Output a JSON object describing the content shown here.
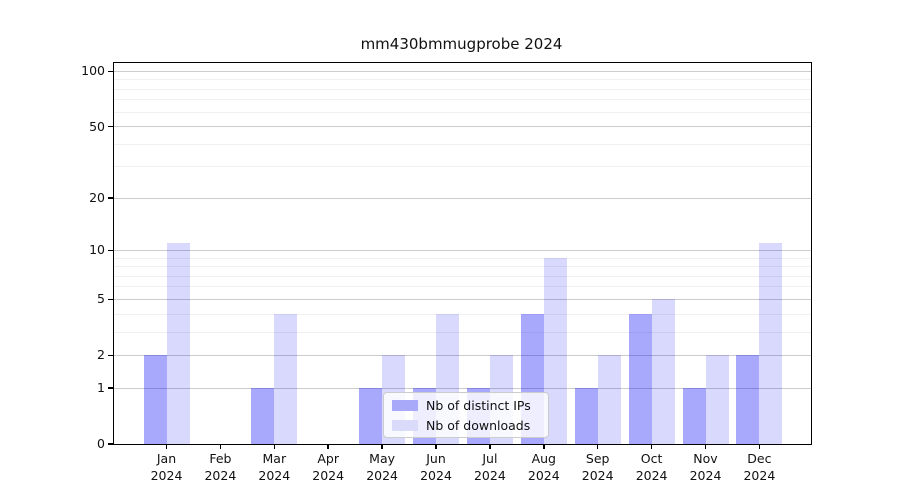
{
  "figure": {
    "background": "#ffffff"
  },
  "chart_data": {
    "type": "bar",
    "title": "mm430bmmugprobe 2024",
    "categories": [
      "Jan",
      "Feb",
      "Mar",
      "Apr",
      "May",
      "Jun",
      "Jul",
      "Aug",
      "Sep",
      "Oct",
      "Nov",
      "Dec"
    ],
    "category_sublabel": "2024",
    "series": [
      {
        "name": "Nb of distinct IPs",
        "fill": "rgba(0, 0, 250, 0.34)",
        "hex": "#a9a9fa",
        "values": [
          2,
          0,
          1,
          0,
          1,
          1,
          1,
          4,
          1,
          4,
          1,
          2
        ]
      },
      {
        "name": "Nb of downloads",
        "fill": "rgba(0, 0, 250, 0.15)",
        "hex": "#dadafa",
        "values": [
          11,
          0,
          4,
          0,
          2,
          4,
          2,
          9,
          2,
          5,
          2,
          11
        ]
      }
    ],
    "xlabel": "",
    "ylabel": "",
    "y_axis": {
      "scale": "log10(1+value)",
      "major_ticks": [
        0,
        1,
        2,
        5,
        10,
        20,
        50,
        100
      ],
      "minor_gridlines": [
        3,
        4,
        6,
        7,
        8,
        9,
        30,
        40,
        60,
        70,
        80,
        90
      ],
      "max": 111
    },
    "grid": {
      "major_color": "#cccccc",
      "minor_color": "#f0f0f0"
    },
    "legend": {
      "position": "lower-center",
      "background": "rgba(255,255,255,0.8)",
      "border_color": "#cccccc"
    }
  }
}
